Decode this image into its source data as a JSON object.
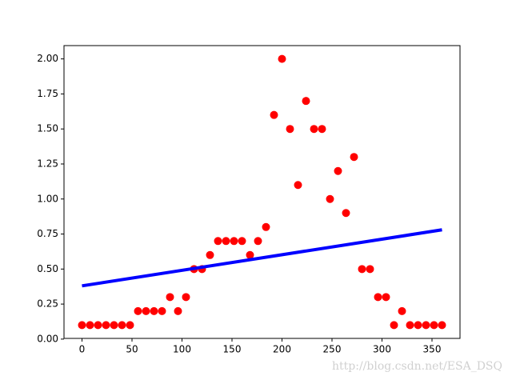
{
  "chart_data": {
    "type": "scatter",
    "series": [
      {
        "type": "scatter",
        "color": "#ff0000",
        "x": [
          0,
          8,
          16,
          24,
          32,
          40,
          48,
          56,
          64,
          72,
          80,
          88,
          96,
          104,
          112,
          120,
          128,
          136,
          144,
          152,
          160,
          168,
          176,
          184,
          192,
          200,
          208,
          216,
          224,
          232,
          240,
          248,
          256,
          264,
          272,
          280,
          288,
          296,
          304,
          312,
          320,
          328,
          336,
          344,
          352,
          360
        ],
        "values": [
          0.1,
          0.1,
          0.1,
          0.1,
          0.1,
          0.1,
          0.1,
          0.2,
          0.2,
          0.2,
          0.2,
          0.3,
          0.2,
          0.3,
          0.5,
          0.5,
          0.6,
          0.7,
          0.7,
          0.7,
          0.7,
          0.6,
          0.7,
          0.8,
          1.6,
          2.0,
          1.5,
          1.1,
          1.7,
          1.5,
          1.5,
          1.0,
          1.2,
          0.9,
          1.3,
          0.5,
          0.5,
          0.3,
          0.3,
          0.1,
          0.2,
          0.1,
          0.1,
          0.1,
          0.1,
          0.1
        ]
      },
      {
        "type": "line",
        "color": "#0000ff",
        "x": [
          0,
          360
        ],
        "values": [
          0.38,
          0.78
        ]
      }
    ],
    "xlim": [
      -18,
      378
    ],
    "ylim": [
      0.005,
      2.095
    ],
    "xticks": [
      0,
      50,
      100,
      150,
      200,
      250,
      300,
      350
    ],
    "yticks": [
      {
        "value": 0,
        "label": "0.00"
      },
      {
        "value": 0.25,
        "label": "0.25"
      },
      {
        "value": 0.5,
        "label": "0.50"
      },
      {
        "value": 0.75,
        "label": "0.75"
      },
      {
        "value": 1,
        "label": "1.00"
      },
      {
        "value": 1.25,
        "label": "1.25"
      },
      {
        "value": 1.5,
        "label": "1.50"
      },
      {
        "value": 1.75,
        "label": "1.75"
      },
      {
        "value": 2,
        "label": "2.00"
      }
    ],
    "watermark": "http://blog.csdn.net/ESA_DSQ"
  }
}
